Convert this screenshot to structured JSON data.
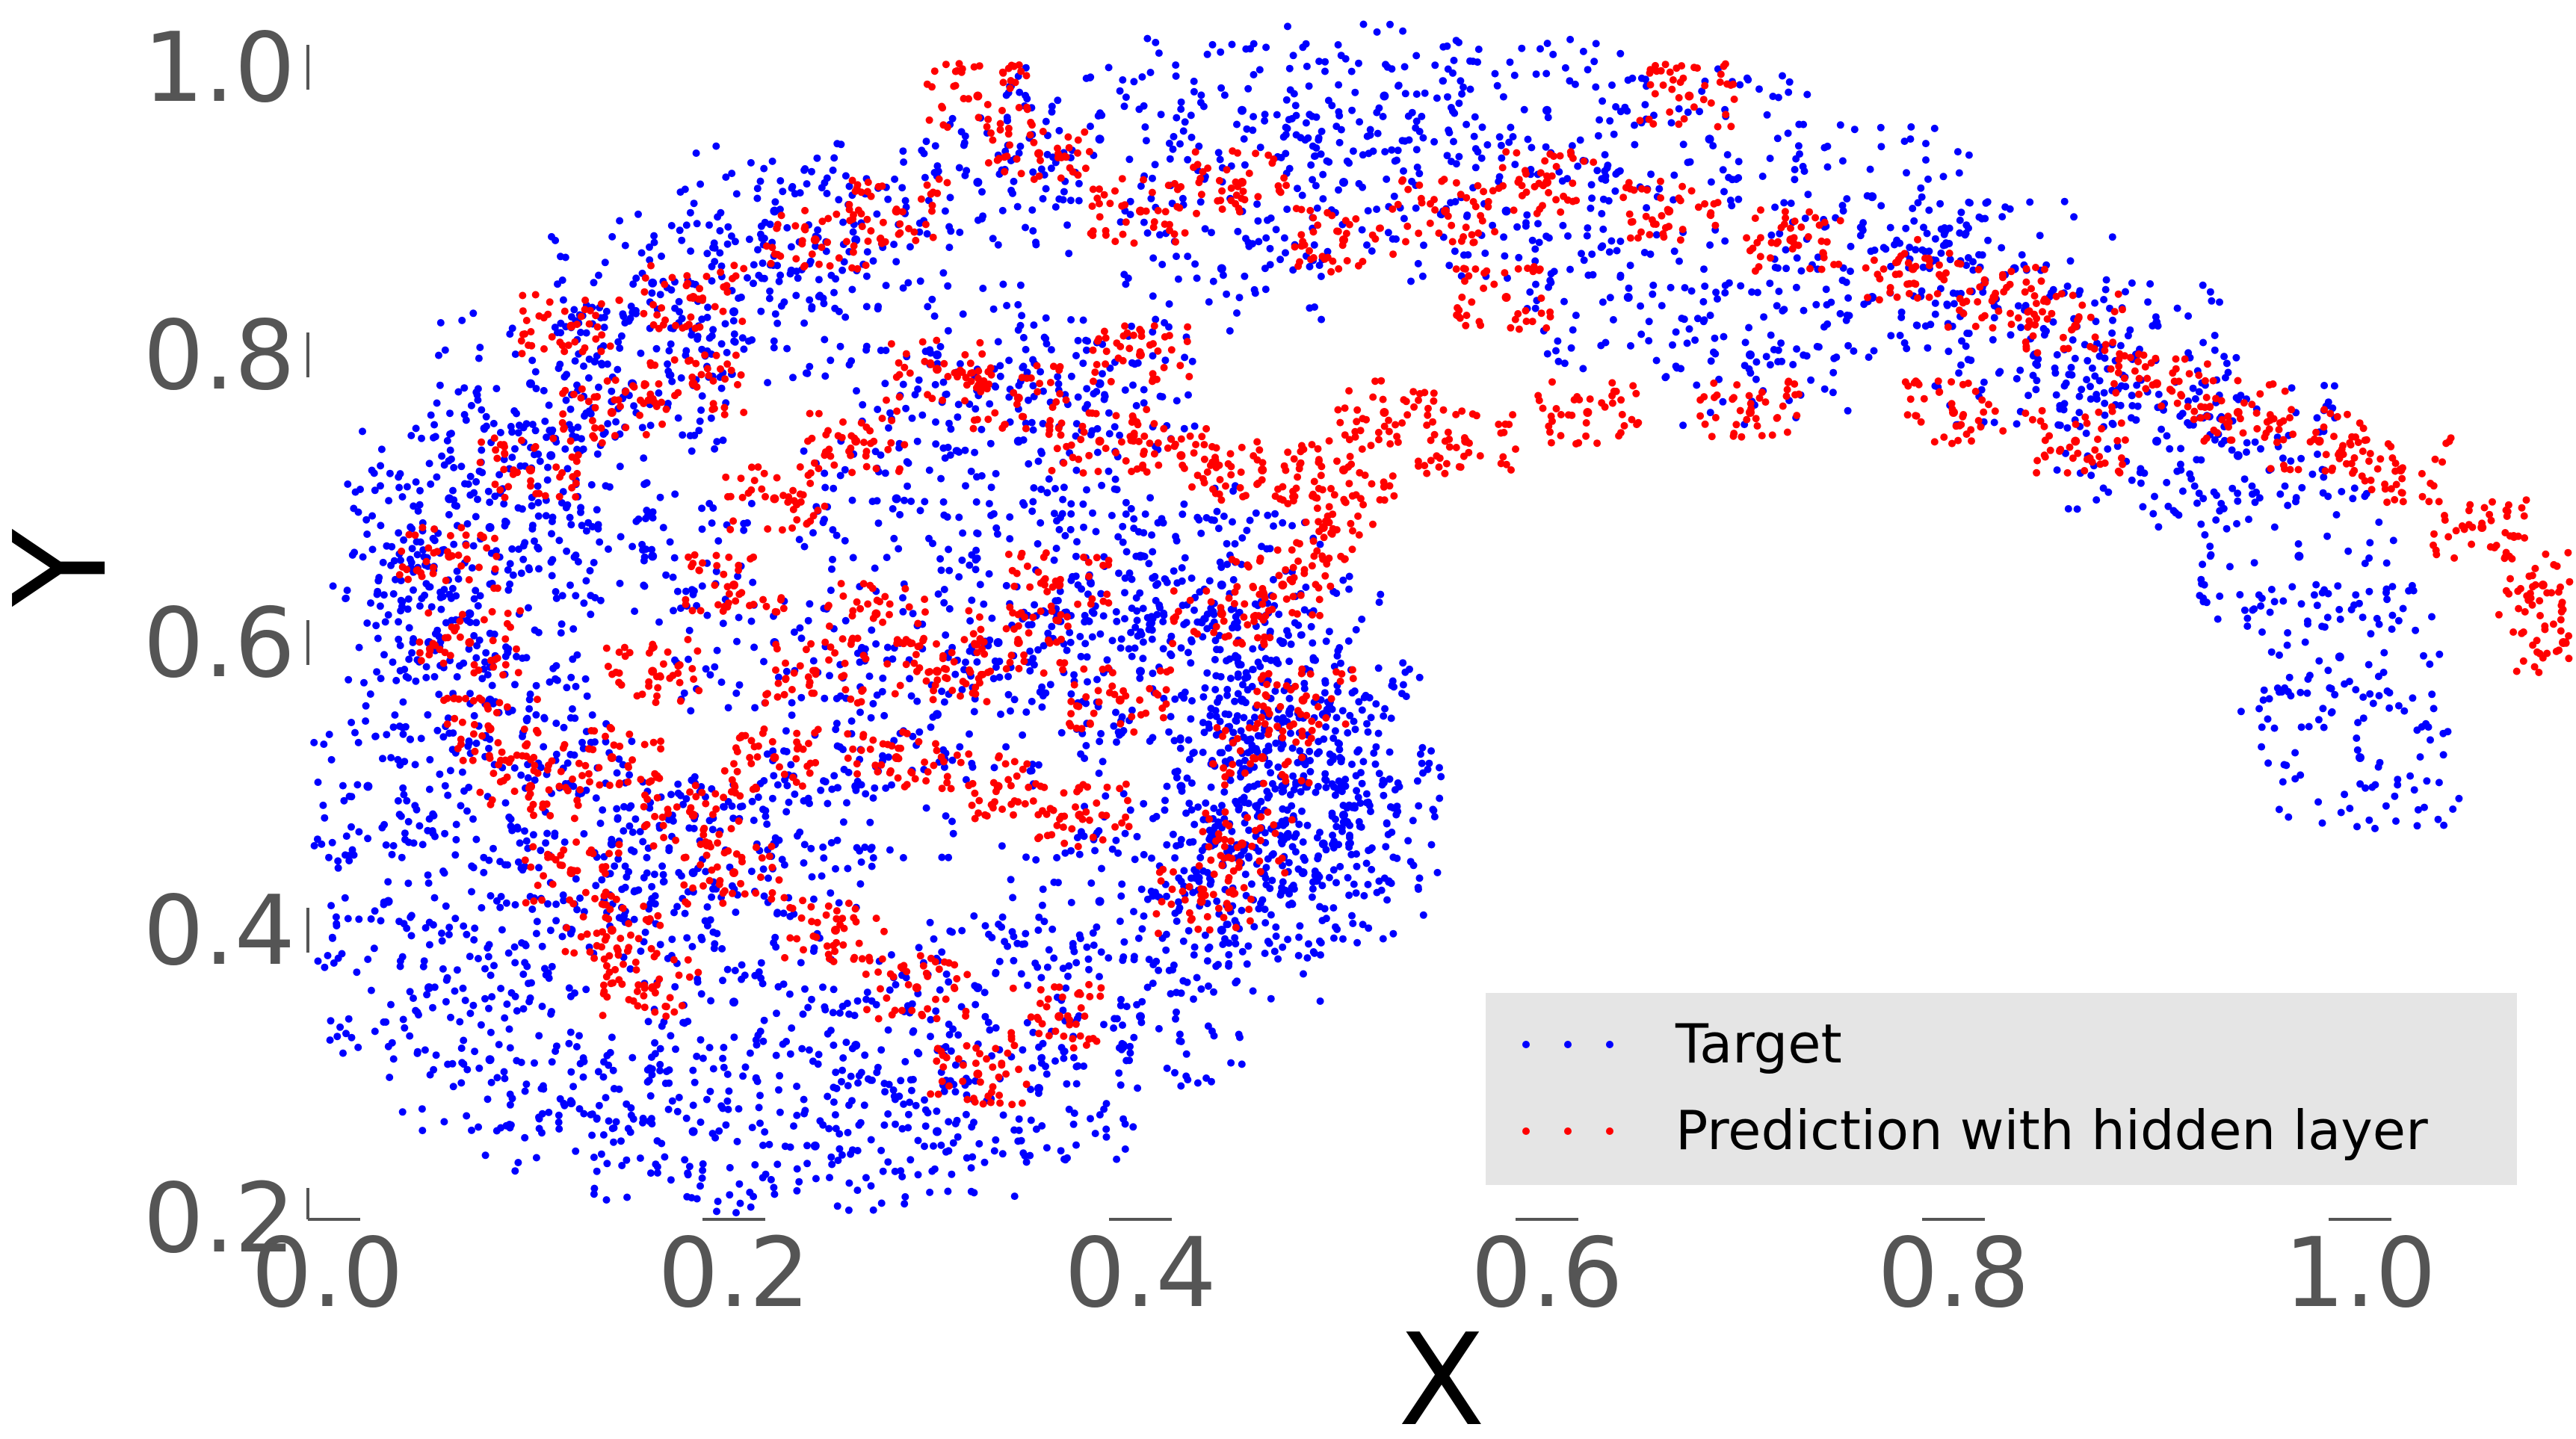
{
  "chart_data": {
    "type": "scatter",
    "title": "",
    "xlabel": "X",
    "ylabel": "Y",
    "xlim": [
      0.0,
      1.1
    ],
    "ylim": [
      0.2,
      1.0
    ],
    "xticks": [
      "0.0",
      "0.2",
      "0.4",
      "0.6",
      "0.8",
      "1.0"
    ],
    "yticks": [
      "0.2",
      "0.4",
      "0.6",
      "0.8",
      "1.0"
    ],
    "grid": false,
    "legend_position": "bottom-right",
    "series": [
      {
        "name": "Target",
        "color": "#0000ff",
        "shape": "filled comma-shaped spiral region",
        "points": [
          [
            0.02,
            0.5
          ],
          [
            0.03,
            0.42
          ],
          [
            0.05,
            0.36
          ],
          [
            0.08,
            0.31
          ],
          [
            0.12,
            0.28
          ],
          [
            0.18,
            0.26
          ],
          [
            0.24,
            0.25
          ],
          [
            0.3,
            0.26
          ],
          [
            0.35,
            0.29
          ],
          [
            0.4,
            0.34
          ],
          [
            0.44,
            0.4
          ],
          [
            0.48,
            0.44
          ],
          [
            0.5,
            0.48
          ],
          [
            0.49,
            0.55
          ],
          [
            0.47,
            0.6
          ],
          [
            0.44,
            0.64
          ],
          [
            0.4,
            0.66
          ],
          [
            0.36,
            0.64
          ],
          [
            0.33,
            0.6
          ],
          [
            0.3,
            0.55
          ],
          [
            0.26,
            0.5
          ],
          [
            0.22,
            0.46
          ],
          [
            0.18,
            0.44
          ],
          [
            0.14,
            0.46
          ],
          [
            0.1,
            0.5
          ],
          [
            0.08,
            0.56
          ],
          [
            0.07,
            0.62
          ],
          [
            0.08,
            0.68
          ],
          [
            0.11,
            0.73
          ],
          [
            0.15,
            0.78
          ],
          [
            0.2,
            0.83
          ],
          [
            0.26,
            0.88
          ],
          [
            0.32,
            0.92
          ],
          [
            0.38,
            0.95
          ],
          [
            0.45,
            0.97
          ],
          [
            0.52,
            0.98
          ],
          [
            0.6,
            0.97
          ],
          [
            0.68,
            0.95
          ],
          [
            0.76,
            0.91
          ],
          [
            0.83,
            0.86
          ],
          [
            0.89,
            0.8
          ],
          [
            0.94,
            0.73
          ],
          [
            0.97,
            0.66
          ],
          [
            0.99,
            0.59
          ],
          [
            1.0,
            0.52
          ],
          [
            0.05,
            0.6
          ],
          [
            0.06,
            0.7
          ],
          [
            0.1,
            0.78
          ],
          [
            0.16,
            0.85
          ],
          [
            0.22,
            0.9
          ],
          [
            0.3,
            0.8
          ],
          [
            0.34,
            0.74
          ],
          [
            0.38,
            0.78
          ],
          [
            0.44,
            0.86
          ],
          [
            0.5,
            0.92
          ],
          [
            0.58,
            0.9
          ],
          [
            0.64,
            0.84
          ],
          [
            0.7,
            0.8
          ],
          [
            0.76,
            0.84
          ],
          [
            0.84,
            0.8
          ],
          [
            0.9,
            0.74
          ],
          [
            0.2,
            0.35
          ],
          [
            0.26,
            0.32
          ],
          [
            0.32,
            0.36
          ],
          [
            0.38,
            0.42
          ],
          [
            0.42,
            0.5
          ],
          [
            0.45,
            0.56
          ],
          [
            0.4,
            0.58
          ],
          [
            0.22,
            0.6
          ],
          [
            0.16,
            0.66
          ],
          [
            0.12,
            0.4
          ],
          [
            0.28,
            0.7
          ],
          [
            0.48,
            0.52
          ],
          [
            0.49,
            0.46
          ],
          [
            0.47,
            0.5
          ],
          [
            0.46,
            0.44
          ]
        ]
      },
      {
        "name": "Prediction with hidden layer",
        "color": "#ff0000",
        "shape": "clustered points along and beyond the spiral arm",
        "points": [
          [
            0.06,
            0.66
          ],
          [
            0.07,
            0.6
          ],
          [
            0.08,
            0.54
          ],
          [
            0.1,
            0.5
          ],
          [
            0.12,
            0.44
          ],
          [
            0.14,
            0.4
          ],
          [
            0.16,
            0.36
          ],
          [
            0.18,
            0.48
          ],
          [
            0.2,
            0.44
          ],
          [
            0.22,
            0.52
          ],
          [
            0.25,
            0.4
          ],
          [
            0.29,
            0.36
          ],
          [
            0.32,
            0.3
          ],
          [
            0.36,
            0.34
          ],
          [
            0.37,
            0.48
          ],
          [
            0.33,
            0.5
          ],
          [
            0.28,
            0.52
          ],
          [
            0.3,
            0.58
          ],
          [
            0.34,
            0.6
          ],
          [
            0.36,
            0.64
          ],
          [
            0.39,
            0.56
          ],
          [
            0.43,
            0.42
          ],
          [
            0.45,
            0.46
          ],
          [
            0.46,
            0.52
          ],
          [
            0.44,
            0.62
          ],
          [
            0.47,
            0.64
          ],
          [
            0.49,
            0.68
          ],
          [
            0.46,
            0.72
          ],
          [
            0.42,
            0.73
          ],
          [
            0.38,
            0.74
          ],
          [
            0.34,
            0.77
          ],
          [
            0.3,
            0.79
          ],
          [
            0.26,
            0.74
          ],
          [
            0.22,
            0.7
          ],
          [
            0.18,
            0.78
          ],
          [
            0.14,
            0.76
          ],
          [
            0.1,
            0.72
          ],
          [
            0.12,
            0.82
          ],
          [
            0.18,
            0.84
          ],
          [
            0.24,
            0.88
          ],
          [
            0.28,
            0.9
          ],
          [
            0.32,
            0.98
          ],
          [
            0.35,
            0.94
          ],
          [
            0.4,
            0.9
          ],
          [
            0.45,
            0.92
          ],
          [
            0.5,
            0.88
          ],
          [
            0.55,
            0.9
          ],
          [
            0.6,
            0.92
          ],
          [
            0.66,
            0.9
          ],
          [
            0.72,
            0.88
          ],
          [
            0.78,
            0.86
          ],
          [
            0.82,
            0.84
          ],
          [
            0.86,
            0.82
          ],
          [
            0.9,
            0.78
          ],
          [
            0.94,
            0.76
          ],
          [
            0.98,
            0.74
          ],
          [
            1.02,
            0.72
          ],
          [
            1.06,
            0.68
          ],
          [
            1.09,
            0.64
          ],
          [
            1.1,
            0.6
          ],
          [
            0.7,
            0.76
          ],
          [
            0.62,
            0.76
          ],
          [
            0.56,
            0.74
          ],
          [
            0.52,
            0.76
          ],
          [
            0.5,
            0.72
          ],
          [
            0.48,
            0.56
          ],
          [
            0.27,
            0.62
          ],
          [
            0.24,
            0.58
          ],
          [
            0.2,
            0.64
          ],
          [
            0.16,
            0.58
          ],
          [
            0.14,
            0.52
          ],
          [
            0.4,
            0.8
          ],
          [
            0.58,
            0.84
          ],
          [
            0.86,
            0.74
          ],
          [
            0.67,
            0.98
          ],
          [
            0.8,
            0.76
          ]
        ]
      }
    ]
  }
}
